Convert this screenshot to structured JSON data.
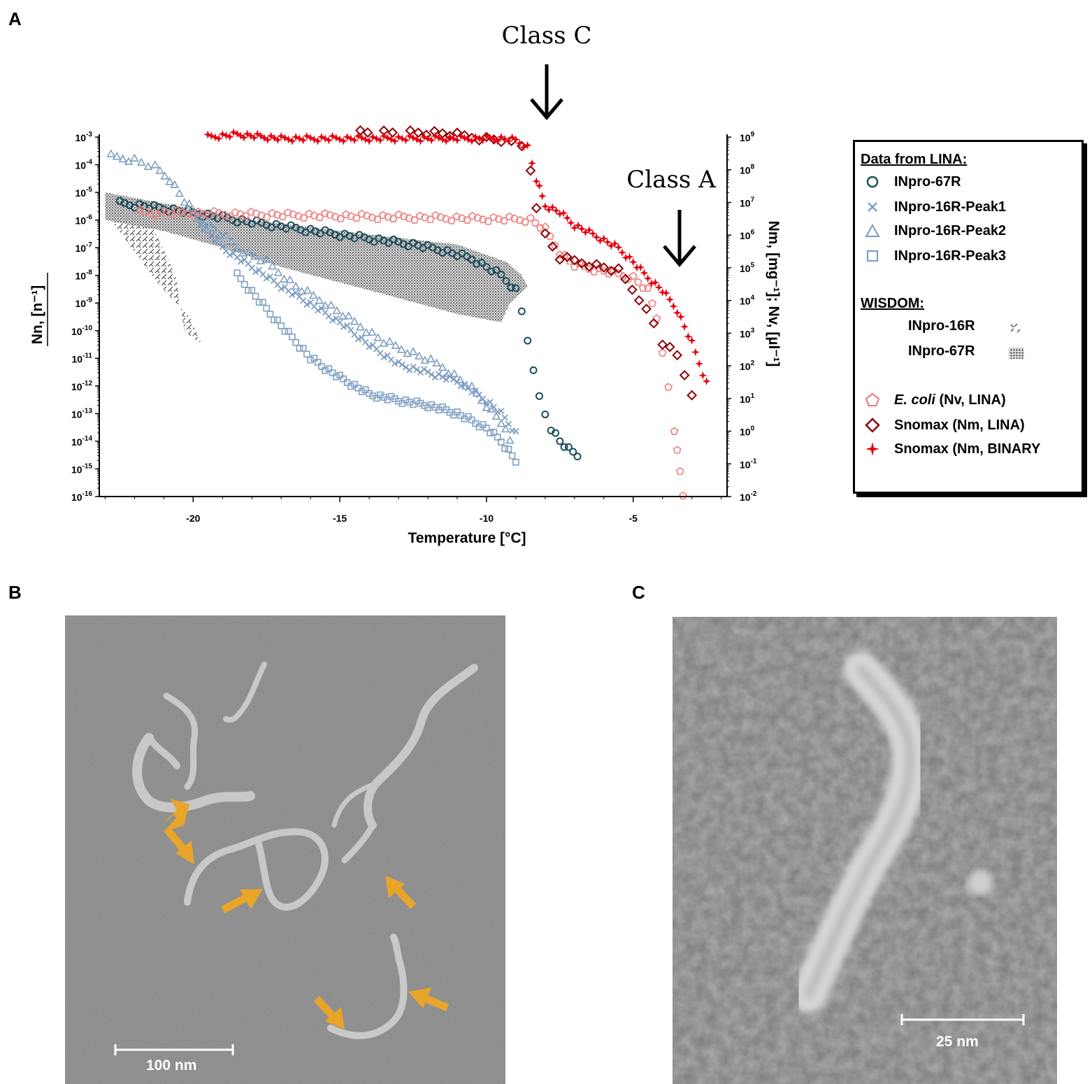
{
  "panels": {
    "a": "A",
    "b": "B",
    "c": "C"
  },
  "chart_data": {
    "type": "scatter",
    "xlabel": "Temperature [°C]",
    "ylabel_left": "Nn, [n⁻¹]",
    "ylabel_right": "Nm, [mg⁻¹]; Nv, [µl⁻¹]",
    "xlim": [
      -23.2,
      -1.8
    ],
    "xticks": [
      -20,
      -15,
      -10,
      -5
    ],
    "y_left_scale": "log",
    "y_left_lim": [
      1e-16,
      0.001
    ],
    "y_left_ticks": [
      "10-3",
      "10-4",
      "10-5",
      "10-6",
      "10-7",
      "10-8",
      "10-9",
      "10-10",
      "10-11",
      "10-12",
      "10-13",
      "10-14",
      "10-15",
      "10-16"
    ],
    "y_right_scale": "log",
    "y_right_lim": [
      0.01,
      1000000000.0
    ],
    "y_right_ticks": [
      "109",
      "108",
      "107",
      "106",
      "105",
      "104",
      "103",
      "102",
      "101",
      "100",
      "10-1",
      "10-2"
    ],
    "annotations": [
      {
        "text": "Class C",
        "x": -8.1,
        "arrow": "down"
      },
      {
        "text": "Class A",
        "x": -3.5,
        "arrow": "down"
      }
    ],
    "series": [
      {
        "name": "INpro-67R",
        "axis": "left",
        "marker": "circle",
        "color": "#1a4d5c",
        "x": [
          -22.5,
          -21.5,
          -20.5,
          -19.5,
          -18.5,
          -17.5,
          -16.5,
          -15.5,
          -14.5,
          -13.5,
          -12.5,
          -11.5,
          -10.5,
          -10,
          -9.5,
          -9,
          -8.8,
          -8.6,
          -8.4,
          -8.2,
          -8.0,
          -7.8,
          -7.5,
          -7.2,
          -6.9
        ],
        "y": [
          4e-06,
          3e-06,
          2.2e-06,
          1.5e-06,
          1e-06,
          7e-07,
          5e-07,
          3.5e-07,
          2.5e-07,
          1.8e-07,
          1.3e-07,
          8e-08,
          4e-08,
          2e-08,
          1e-08,
          3e-09,
          5e-10,
          5e-11,
          3e-12,
          4e-13,
          1e-13,
          3e-14,
          1e-14,
          5e-15,
          3e-15
        ]
      },
      {
        "name": "INpro-16R-Peak1",
        "axis": "left",
        "marker": "x",
        "color": "#7f9fc2",
        "x": [
          -20,
          -19,
          -18,
          -17,
          -16,
          -15,
          -14,
          -13,
          -12,
          -11,
          -10,
          -9.5,
          -9.0
        ],
        "y": [
          1.5e-06,
          1e-07,
          2e-08,
          4e-09,
          9e-10,
          2e-10,
          3e-11,
          6e-12,
          3e-12,
          1.5e-12,
          3e-13,
          1e-13,
          2e-14
        ]
      },
      {
        "name": "INpro-16R-Peak2",
        "axis": "left",
        "marker": "triangle",
        "color": "#7f9fc2",
        "x": [
          -22.8,
          -22,
          -21.3,
          -20.8,
          -20.3,
          -19.8,
          -19.3,
          -18.5,
          -17.5,
          -16.5,
          -15.5,
          -14.5,
          -13.5,
          -12.5,
          -11.5,
          -10.5,
          -10,
          -9.5,
          -9.2
        ],
        "y": [
          0.0002,
          0.00015,
          8e-05,
          3e-05,
          5e-06,
          1.2e-06,
          5e-07,
          1e-07,
          3e-08,
          4e-09,
          1e-09,
          2e-10,
          4e-11,
          1.5e-11,
          5e-12,
          8e-13,
          2e-13,
          5e-14,
          1e-14
        ]
      },
      {
        "name": "INpro-16R-Peak3",
        "axis": "left",
        "marker": "square",
        "color": "#7f9fc2",
        "x": [
          -18.5,
          -18,
          -17.5,
          -17,
          -16.5,
          -16,
          -15,
          -14,
          -13,
          -12,
          -11,
          -10,
          -9.5,
          -9.0
        ],
        "y": [
          1e-08,
          2.5e-09,
          6e-10,
          1.5e-10,
          4e-11,
          1e-11,
          2e-12,
          5e-13,
          3e-13,
          2e-13,
          1e-13,
          3e-14,
          1e-14,
          2e-15
        ]
      },
      {
        "name": "E. coli (Nv, LINA)",
        "axis": "right",
        "marker": "pentagon",
        "color": "#f08080",
        "x": [
          -21.8,
          -8.5,
          -8,
          -7.5,
          -7,
          -6,
          -5,
          -4.5,
          -4.2,
          -4,
          -3.8,
          -3.6,
          -3.5,
          -3.4,
          -3.3
        ],
        "y": [
          5000000.0,
          3000000.0,
          1500000.0,
          300000.0,
          120000.0,
          80000.0,
          50000.0,
          20000.0,
          3000.0,
          300.0,
          20.0,
          1,
          0.3,
          0.05,
          0.01
        ]
      },
      {
        "name": "Snomax (Nm, LINA)",
        "axis": "right",
        "marker": "diamond",
        "color": "#8b0000",
        "x": [
          -14.8,
          -13.8,
          -12.6,
          -11.5,
          -10.5,
          -9.5,
          -8.8,
          -8.5,
          -8.3,
          -8.0,
          -7.5,
          -6.5,
          -5.5,
          -4.8,
          -4.3,
          -4.0,
          -3.5,
          -3.0
        ],
        "y": [
          1800000000.0,
          1600000000.0,
          1500000000.0,
          1300000000.0,
          1000000000.0,
          800000000.0,
          500000000.0,
          100000000.0,
          8000000.0,
          1000000.0,
          200000.0,
          130000.0,
          80000.0,
          12000.0,
          2000.0,
          500.0,
          200.0,
          15.0
        ]
      },
      {
        "name": "Snomax (Nm, BINARY)",
        "axis": "right",
        "marker": "star",
        "color": "#e8000f",
        "x": [
          -19.5,
          -18.5,
          -17,
          -16,
          -15,
          -14,
          -13,
          -12,
          -11,
          -10,
          -9.5,
          -9,
          -8.6,
          -8.3,
          -8.0,
          -7.5,
          -7.0,
          -6.5,
          -6.0,
          -5.5,
          -5.0,
          -4.5,
          -4.0,
          -3.5,
          -3.0,
          -2.5
        ],
        "y": [
          1000000000.0,
          1200000000.0,
          900000000.0,
          900000000.0,
          900000000.0,
          900000000.0,
          900000000.0,
          900000000.0,
          900000000.0,
          900000000.0,
          900000000.0,
          800000000.0,
          500000000.0,
          50000000.0,
          8000000.0,
          5000000.0,
          2000000.0,
          1200000.0,
          700000.0,
          400000.0,
          150000.0,
          50000.0,
          20000.0,
          5000.0,
          500.0,
          30.0
        ]
      }
    ],
    "shaded_regions": [
      {
        "name": "INpro-16R",
        "axis": "left",
        "pattern": "hatch",
        "poly": [
          [
            -22.8,
            2e-06
          ],
          [
            -21.5,
            1e-06
          ],
          [
            -20.6,
            1e-08
          ],
          [
            -20.3,
            1e-10
          ],
          [
            -19.7,
            3e-11
          ],
          [
            -20.1,
            3e-10
          ],
          [
            -21.2,
            5e-09
          ],
          [
            -22.8,
            1e-06
          ]
        ]
      },
      {
        "name": "INpro-67R",
        "axis": "left",
        "pattern": "dots",
        "poly": [
          [
            -23,
            1e-05
          ],
          [
            -18,
            1e-06
          ],
          [
            -14,
            3e-07
          ],
          [
            -11,
            1.3e-07
          ],
          [
            -9.3,
            3e-08
          ],
          [
            -8.8,
            1e-08
          ],
          [
            -8.6,
            4e-09
          ],
          [
            -9.2,
            1e-09
          ],
          [
            -9.5,
            2e-10
          ],
          [
            -11,
            4e-10
          ],
          [
            -13,
            1.5e-09
          ],
          [
            -14.5,
            4e-09
          ],
          [
            -17,
            2e-08
          ],
          [
            -19,
            1e-07
          ],
          [
            -21,
            4e-07
          ],
          [
            -23,
            1e-06
          ]
        ]
      }
    ]
  },
  "legend": {
    "heading_lina": "Data from LINA:",
    "items_lina": [
      {
        "label": "INpro-67R",
        "icon": "circle-marker-icon",
        "color": "#1a4d5c"
      },
      {
        "label": "INpro-16R-Peak1",
        "icon": "x-marker-icon",
        "color": "#7f9fc2"
      },
      {
        "label": "INpro-16R-Peak2",
        "icon": "triangle-marker-icon",
        "color": "#7f9fc2"
      },
      {
        "label": "INpro-16R-Peak3",
        "icon": "square-marker-icon",
        "color": "#7f9fc2"
      }
    ],
    "heading_wisdom": "WISDOM:",
    "items_wisdom": [
      {
        "label": "INpro-16R",
        "icon": "hatch-swatch-icon"
      },
      {
        "label": "INpro-67R",
        "icon": "dots-swatch-icon"
      }
    ],
    "items_other": [
      {
        "label_italic": "E. coli",
        "label_rest": " (Nv, LINA)",
        "icon": "pentagon-marker-icon",
        "color": "#f08080"
      },
      {
        "label": "Snomax (Nm, LINA)",
        "icon": "diamond-marker-icon",
        "color": "#8b0000"
      },
      {
        "label": "Snomax (Nm, BINARY",
        "icon": "star-marker-icon",
        "color": "#e8000f"
      }
    ]
  },
  "micrographs": {
    "b": {
      "scale_label": "100 nm",
      "arrow_color": "#e8a52a"
    },
    "c": {
      "scale_label": "25 nm"
    }
  }
}
